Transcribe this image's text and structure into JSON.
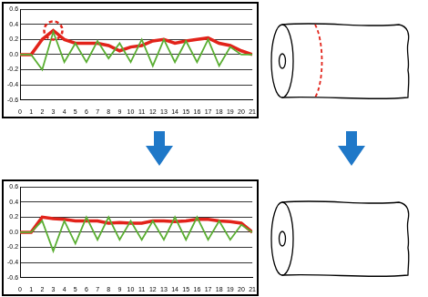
{
  "chart_data": [
    {
      "type": "line",
      "x": [
        0,
        1,
        2,
        3,
        4,
        5,
        6,
        7,
        8,
        9,
        10,
        11,
        12,
        13,
        14,
        15,
        16,
        17,
        18,
        19,
        20,
        21
      ],
      "series": [
        {
          "name": null,
          "color": "#e2231a",
          "values": [
            0,
            0,
            0.2,
            0.32,
            0.2,
            0.15,
            0.15,
            0.15,
            0.12,
            0.05,
            0.1,
            0.12,
            0.18,
            0.2,
            0.15,
            0.18,
            0.2,
            0.22,
            0.15,
            0.12,
            0.05,
            0
          ]
        },
        {
          "name": null,
          "color": "#5aae32",
          "values": [
            0,
            0,
            -0.2,
            0.3,
            -0.1,
            0.15,
            -0.1,
            0.18,
            -0.05,
            0.15,
            -0.1,
            0.2,
            -0.15,
            0.2,
            -0.1,
            0.18,
            -0.1,
            0.2,
            -0.15,
            0.1,
            0,
            0
          ]
        }
      ],
      "xlim": [
        0,
        21
      ],
      "xticks": [
        0,
        1,
        2,
        3,
        4,
        5,
        6,
        7,
        8,
        9,
        10,
        11,
        12,
        13,
        14,
        15,
        16,
        17,
        18,
        19,
        20,
        21
      ],
      "ylim": [
        -0.6,
        0.6
      ],
      "yticks": [
        -0.6,
        -0.4,
        -0.2,
        {
          "value": 0,
          "label": "0.0"
        },
        0.2,
        0.4,
        0.6
      ],
      "grid": true
    },
    {
      "type": "line",
      "x": [
        0,
        1,
        2,
        3,
        4,
        5,
        6,
        7,
        8,
        9,
        10,
        11,
        12,
        13,
        14,
        15,
        16,
        17,
        18,
        19,
        20,
        21
      ],
      "series": [
        {
          "name": null,
          "color": "#e2231a",
          "values": [
            0,
            0,
            0.2,
            0.18,
            0.17,
            0.15,
            0.15,
            0.15,
            0.12,
            0.13,
            0.12,
            0.12,
            0.15,
            0.15,
            0.14,
            0.15,
            0.17,
            0.17,
            0.15,
            0.14,
            0.12,
            0
          ]
        },
        {
          "name": null,
          "color": "#5aae32",
          "values": [
            0,
            0,
            0.15,
            -0.25,
            0.15,
            -0.15,
            0.2,
            -0.1,
            0.2,
            -0.1,
            0.15,
            -0.1,
            0.15,
            -0.1,
            0.2,
            -0.1,
            0.2,
            -0.1,
            0.15,
            -0.1,
            0.1,
            0
          ]
        }
      ],
      "xlim": [
        0,
        21
      ],
      "xticks": [
        0,
        1,
        2,
        3,
        4,
        5,
        6,
        7,
        8,
        9,
        10,
        11,
        12,
        13,
        14,
        15,
        16,
        17,
        18,
        19,
        20,
        21
      ],
      "ylim": [
        -0.6,
        0.6
      ],
      "yticks": [
        -0.6,
        -0.4,
        -0.2,
        {
          "value": 0,
          "label": "0.0"
        },
        0.2,
        0.4,
        0.6
      ],
      "grid": true
    }
  ]
}
